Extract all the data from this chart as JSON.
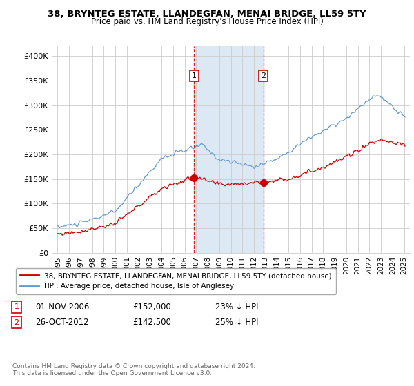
{
  "title": "38, BRYNTEG ESTATE, LLANDEGFAN, MENAI BRIDGE, LL59 5TY",
  "subtitle": "Price paid vs. HM Land Registry's House Price Index (HPI)",
  "property_label": "38, BRYNTEG ESTATE, LLANDEGFAN, MENAI BRIDGE, LL59 5TY (detached house)",
  "hpi_label": "HPI: Average price, detached house, Isle of Anglesey",
  "sale1_date": "01-NOV-2006",
  "sale1_price": 152000,
  "sale1_pct": "23% ↓ HPI",
  "sale2_date": "26-OCT-2012",
  "sale2_price": 142500,
  "sale2_pct": "25% ↓ HPI",
  "sale1_year": 2006.83,
  "sale2_year": 2012.82,
  "ylabel_ticks": [
    0,
    50000,
    100000,
    150000,
    200000,
    250000,
    300000,
    350000,
    400000
  ],
  "ylabel_labels": [
    "£0",
    "£50K",
    "£100K",
    "£150K",
    "£200K",
    "£250K",
    "£300K",
    "£350K",
    "£400K"
  ],
  "property_color": "#cc0000",
  "hpi_color": "#6699cc",
  "highlight_bg": "#dce9f5",
  "vline_color": "#cc0000",
  "footer": "Contains HM Land Registry data © Crown copyright and database right 2024.\nThis data is licensed under the Open Government Licence v3.0.",
  "xlim_start": 1994.5,
  "xlim_end": 2025.5,
  "ylim_max": 420000
}
